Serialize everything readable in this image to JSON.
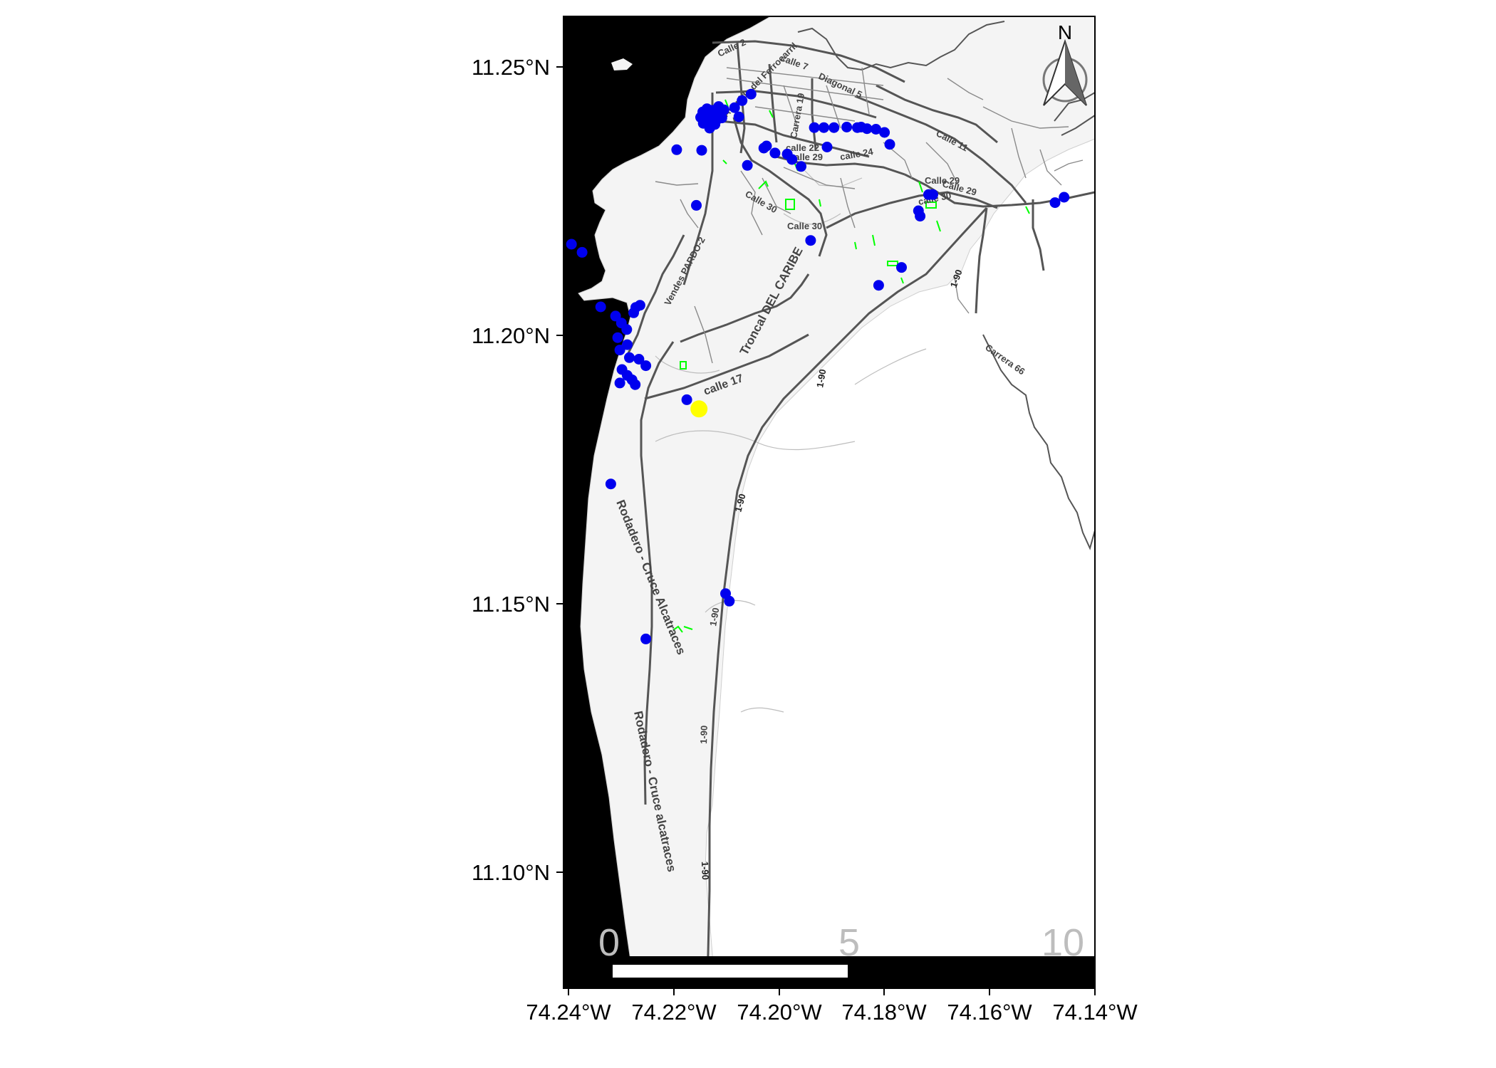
{
  "axes": {
    "x_ticks": [
      "74.24°W",
      "74.22°W",
      "74.20°W",
      "74.18°W",
      "74.16°W",
      "74.14°W"
    ],
    "y_ticks": [
      "11.25°N",
      "11.20°N",
      "11.15°N",
      "11.10°N"
    ],
    "lon_range": [
      -74.242,
      -74.142
    ],
    "lat_range": [
      11.082,
      11.262
    ]
  },
  "north_arrow": {
    "label": "N"
  },
  "scale_bar": {
    "labels": [
      "0",
      "5",
      "10"
    ]
  },
  "road_labels": [
    "Calle 2",
    "calle 7",
    "Diagonal 5",
    "Avenida del Ferrocarril",
    "Carrera 19",
    "calle 22",
    "calle 29",
    "calle 24",
    "Calle 11",
    "Calle 29",
    "calle 30",
    "Calle 29",
    "Calle 30",
    "Calle 30",
    "Troncal DEL CARIBE",
    "calle 17",
    "1-90",
    "1-90",
    "1-90",
    "1-90",
    "1-90",
    "1-90",
    "Carrera 66",
    "Rodadero - Cruce Alcatraces",
    "Rodadero - Cruce alcatraces",
    "Vendes PARDO-2"
  ],
  "colors": {
    "sea": "#000000",
    "land": "#f4f4f4",
    "road": "#555555",
    "poi_point": "#0000ee",
    "highlight_point": "#ffff00",
    "green_area": "#00ff00"
  },
  "points": {
    "blue": [
      [
        -74.2154,
        11.243
      ],
      [
        -74.2149,
        11.2436
      ],
      [
        -74.2143,
        11.244
      ],
      [
        -74.2138,
        11.2434
      ],
      [
        -74.2146,
        11.2427
      ],
      [
        -74.2157,
        11.2422
      ],
      [
        -74.214,
        11.2446
      ],
      [
        -74.2132,
        11.2428
      ],
      [
        -74.2127,
        11.244
      ],
      [
        -74.215,
        11.2449
      ],
      [
        -74.2162,
        11.2433
      ],
      [
        -74.2135,
        11.242
      ],
      [
        -74.2145,
        11.2413
      ],
      [
        -74.2122,
        11.2432
      ],
      [
        -74.2118,
        11.2447
      ],
      [
        -74.2158,
        11.2443
      ],
      [
        -74.2128,
        11.2453
      ],
      [
        -74.2098,
        11.2451
      ],
      [
        -74.209,
        11.2434
      ],
      [
        -74.2084,
        11.2464
      ],
      [
        -74.2067,
        11.2476
      ],
      [
        -74.216,
        11.2372
      ],
      [
        -74.2074,
        11.2344
      ],
      [
        -74.2043,
        11.2376
      ],
      [
        -74.2038,
        11.238
      ],
      [
        -74.2207,
        11.2373
      ],
      [
        -74.2022,
        11.2367
      ],
      [
        -74.1999,
        11.2365
      ],
      [
        -74.199,
        11.2355
      ],
      [
        -74.1973,
        11.2342
      ],
      [
        -74.1924,
        11.2378
      ],
      [
        -74.1948,
        11.2414
      ],
      [
        -74.193,
        11.2414
      ],
      [
        -74.1911,
        11.2414
      ],
      [
        -74.1887,
        11.2415
      ],
      [
        -74.1867,
        11.2414
      ],
      [
        -74.186,
        11.2415
      ],
      [
        -74.1849,
        11.2412
      ],
      [
        -74.1832,
        11.2411
      ],
      [
        -74.1816,
        11.2405
      ],
      [
        -74.1806,
        11.2383
      ],
      [
        -74.1733,
        11.229
      ],
      [
        -74.1725,
        11.229
      ],
      [
        -74.1752,
        11.226
      ],
      [
        -74.1749,
        11.225
      ],
      [
        -74.1495,
        11.2275
      ],
      [
        -74.1478,
        11.2285
      ],
      [
        -74.217,
        11.227
      ],
      [
        -74.1955,
        11.2205
      ],
      [
        -74.1784,
        11.2155
      ],
      [
        -74.1827,
        11.2122
      ],
      [
        -74.2405,
        11.2198
      ],
      [
        -74.2385,
        11.2183
      ],
      [
        -74.235,
        11.2082
      ],
      [
        -74.2322,
        11.2065
      ],
      [
        -74.2311,
        11.2052
      ],
      [
        -74.2301,
        11.204
      ],
      [
        -74.2288,
        11.2071
      ],
      [
        -74.2284,
        11.2081
      ],
      [
        -74.2276,
        11.2085
      ],
      [
        -74.2318,
        11.2025
      ],
      [
        -74.23,
        11.2012
      ],
      [
        -74.2314,
        11.2002
      ],
      [
        -74.2296,
        11.1988
      ],
      [
        -74.2278,
        11.1985
      ],
      [
        -74.2265,
        11.1973
      ],
      [
        -74.231,
        11.1966
      ],
      [
        -74.23,
        11.1955
      ],
      [
        -74.2291,
        11.1947
      ],
      [
        -74.2314,
        11.1941
      ],
      [
        -74.2285,
        11.1938
      ],
      [
        -74.2188,
        11.191
      ],
      [
        -74.2331,
        11.1754
      ],
      [
        -74.2115,
        11.1551
      ],
      [
        -74.2108,
        11.1537
      ],
      [
        -74.2265,
        11.1467
      ]
    ],
    "yellow": [
      [
        -74.2165,
        11.1893
      ]
    ]
  }
}
